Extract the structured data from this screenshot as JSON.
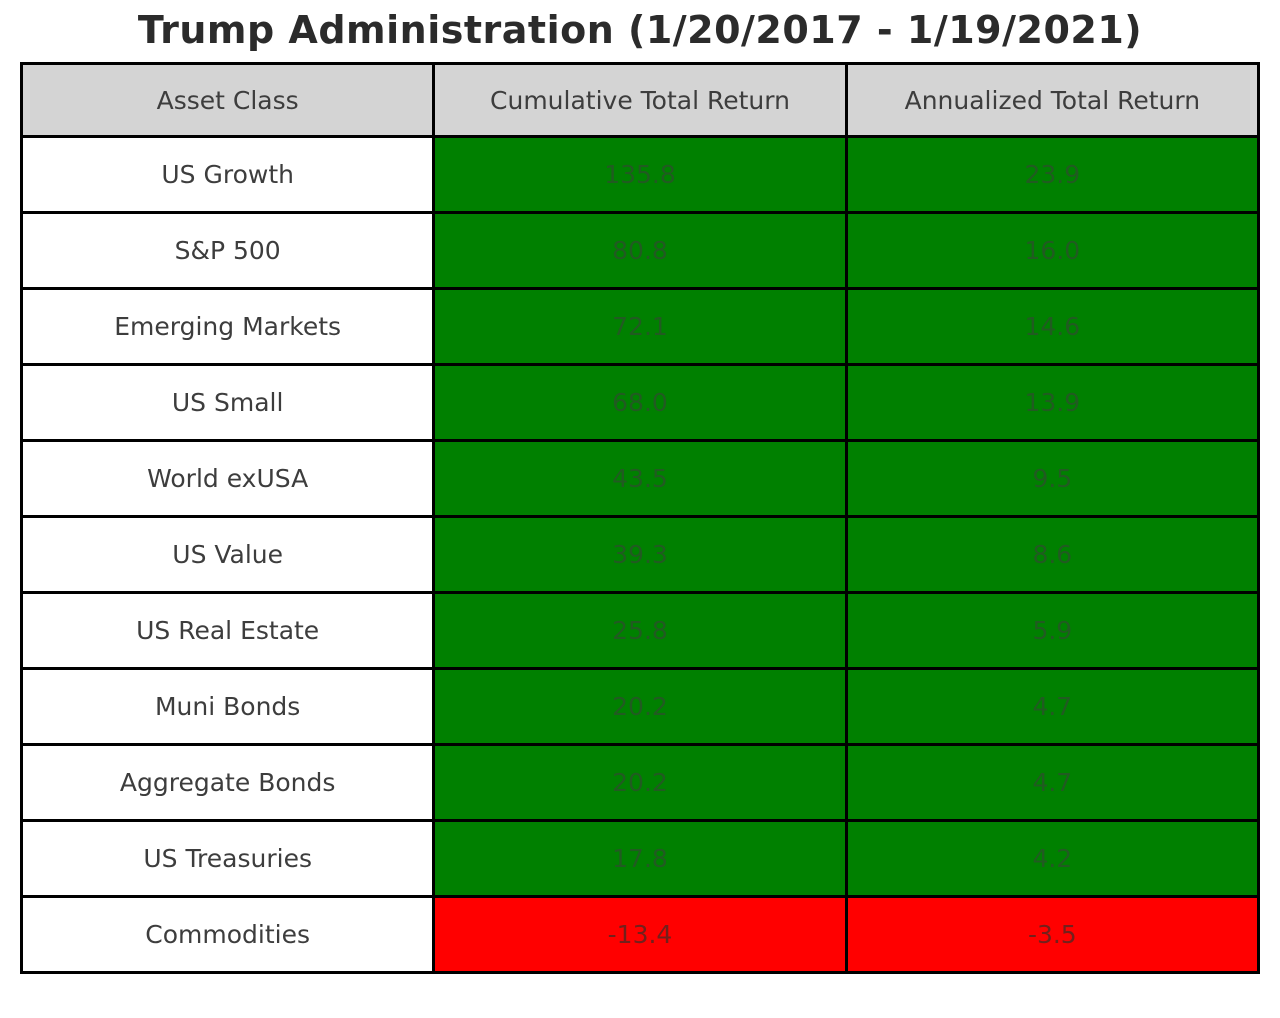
{
  "title": "Trump Administration (1/20/2017 - 1/19/2021)",
  "table": {
    "headers": [
      "Asset Class",
      "Cumulative Total Return",
      "Annualized Total Return"
    ],
    "rows": [
      {
        "asset": "US Growth",
        "cumulative": "135.8",
        "annualized": "23.9"
      },
      {
        "asset": "S&P 500",
        "cumulative": "80.8",
        "annualized": "16.0"
      },
      {
        "asset": "Emerging Markets",
        "cumulative": "72.1",
        "annualized": "14.6"
      },
      {
        "asset": "US Small",
        "cumulative": "68.0",
        "annualized": "13.9"
      },
      {
        "asset": "World exUSA",
        "cumulative": "43.5",
        "annualized": "9.5"
      },
      {
        "asset": "US Value",
        "cumulative": "39.3",
        "annualized": "8.6"
      },
      {
        "asset": "US Real Estate",
        "cumulative": "25.8",
        "annualized": "5.9"
      },
      {
        "asset": "Muni Bonds",
        "cumulative": "20.2",
        "annualized": "4.7"
      },
      {
        "asset": "Aggregate Bonds",
        "cumulative": "20.2",
        "annualized": "4.7"
      },
      {
        "asset": "US Treasuries",
        "cumulative": "17.8",
        "annualized": "4.2"
      },
      {
        "asset": "Commodities",
        "cumulative": "-13.4",
        "annualized": "-3.5"
      }
    ]
  },
  "colors": {
    "positive_cell": "#008000",
    "negative_cell": "#ff0000",
    "header_background": "#d4d4d4",
    "border": "#000000",
    "text": "#3d3d3d",
    "title_text": "#2b2b2b"
  },
  "chart_data": {
    "type": "table",
    "title": "Trump Administration (1/20/2017 - 1/19/2021)",
    "columns": [
      "Asset Class",
      "Cumulative Total Return",
      "Annualized Total Return"
    ],
    "categories": [
      "US Growth",
      "S&P 500",
      "Emerging Markets",
      "US Small",
      "World exUSA",
      "US Value",
      "US Real Estate",
      "Muni Bonds",
      "Aggregate Bonds",
      "US Treasuries",
      "Commodities"
    ],
    "series": [
      {
        "name": "Cumulative Total Return",
        "values": [
          135.8,
          80.8,
          72.1,
          68.0,
          43.5,
          39.3,
          25.8,
          20.2,
          20.2,
          17.8,
          -13.4
        ]
      },
      {
        "name": "Annualized Total Return",
        "values": [
          23.9,
          16.0,
          14.6,
          13.9,
          9.5,
          8.6,
          5.9,
          4.7,
          4.7,
          4.2,
          -3.5
        ]
      }
    ],
    "layout_hints": {
      "cell_color_rule": "green background for positive values, red background for negative values",
      "header_background": "#d4d4d4",
      "grid": true
    }
  }
}
